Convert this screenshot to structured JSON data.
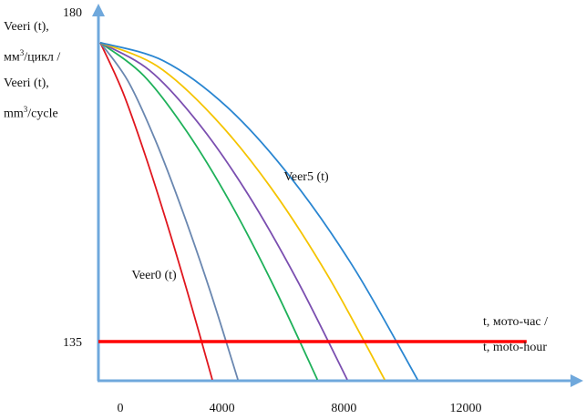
{
  "chart_data": {
    "type": "line",
    "title": "",
    "ylabel_lines": [
      "Veeri (t),",
      "мм",
      "/цикл /",
      "Veeri (t),",
      "mm",
      "/cycle"
    ],
    "xlabel_lines": [
      "t, мото-час /",
      "t, moto-hour"
    ],
    "x_ticks": [
      0,
      4000,
      8000,
      12000
    ],
    "x_tick_labels": [
      "0",
      "4000",
      "8000",
      "12000"
    ],
    "y_ticks": [
      135,
      180
    ],
    "y_tick_labels": [
      "135",
      "180"
    ],
    "xlim": [
      0,
      15000
    ],
    "ylim": [
      130,
      180
    ],
    "grid": false,
    "series": [
      {
        "name": "Veer0 (t)",
        "color": "#e0161e",
        "t": [
          0,
          736,
          1472,
          2208,
          2944,
          3680
        ],
        "v": [
          175.8,
          169.1,
          160.5,
          150.9,
          140.6,
          129.8
        ]
      },
      {
        "color": "#6a87b0",
        "t": [
          0,
          904,
          1808,
          2712,
          3616,
          4520
        ],
        "v": [
          175.8,
          170.6,
          162.5,
          152.7,
          141.8,
          129.8
        ]
      },
      {
        "color": "#1fb15a",
        "t": [
          0,
          1426,
          2852,
          4278,
          5704,
          7130
        ],
        "v": [
          175.8,
          171.3,
          163.6,
          153.9,
          142.5,
          129.8
        ]
      },
      {
        "color": "#7b4fb0",
        "t": [
          0,
          1622,
          3244,
          4866,
          6488,
          8110
        ],
        "v": [
          175.8,
          172.0,
          164.7,
          155.0,
          143.2,
          129.8
        ]
      },
      {
        "color": "#f5c400",
        "t": [
          0,
          1868,
          3736,
          5604,
          7472,
          9340
        ],
        "v": [
          175.8,
          172.6,
          165.6,
          156.0,
          144.0,
          129.8
        ]
      },
      {
        "name": "Veer5 (t)",
        "color": "#2a86d1",
        "t": [
          0,
          2084,
          4168,
          6252,
          8336,
          10420
        ],
        "v": [
          175.8,
          173.3,
          167.0,
          157.4,
          145.0,
          129.8
        ]
      }
    ],
    "threshold": {
      "value": 135,
      "t_end": 14000,
      "color": "#ff0000"
    },
    "axis_color": "#6fa8dc"
  }
}
